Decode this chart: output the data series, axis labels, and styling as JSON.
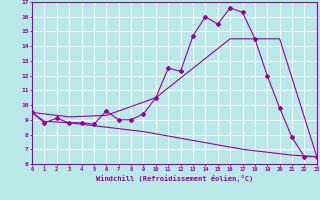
{
  "title": "",
  "xlabel": "Windchill (Refroidissement éolien,°C)",
  "background_color": "#b8e8e8",
  "line_color": "#990099",
  "grid_color": "#ffffff",
  "xmin": 0,
  "xmax": 23,
  "ymin": 6,
  "ymax": 17,
  "line1_x": [
    0,
    1,
    2,
    3,
    4,
    5,
    6,
    7,
    8,
    9,
    10,
    11,
    12,
    13,
    14,
    15,
    16,
    17,
    18,
    19,
    20,
    21,
    22,
    23
  ],
  "line1_y": [
    9.5,
    8.8,
    9.1,
    8.8,
    8.8,
    8.7,
    9.6,
    9.0,
    9.0,
    9.4,
    10.5,
    12.5,
    12.3,
    14.7,
    16.0,
    15.5,
    16.6,
    16.3,
    14.5,
    12.0,
    9.8,
    7.8,
    6.5,
    6.5
  ],
  "line2_x": [
    0,
    3,
    6,
    10,
    13,
    16,
    18,
    20,
    23
  ],
  "line2_y": [
    9.5,
    9.2,
    9.3,
    10.5,
    12.5,
    14.5,
    14.5,
    14.5,
    6.5
  ],
  "line3_x": [
    0,
    1,
    3,
    5,
    7,
    9,
    11,
    13,
    15,
    17,
    19,
    21,
    23
  ],
  "line3_y": [
    9.5,
    8.9,
    8.8,
    8.6,
    8.4,
    8.2,
    7.9,
    7.6,
    7.3,
    7.0,
    6.8,
    6.6,
    6.5
  ]
}
